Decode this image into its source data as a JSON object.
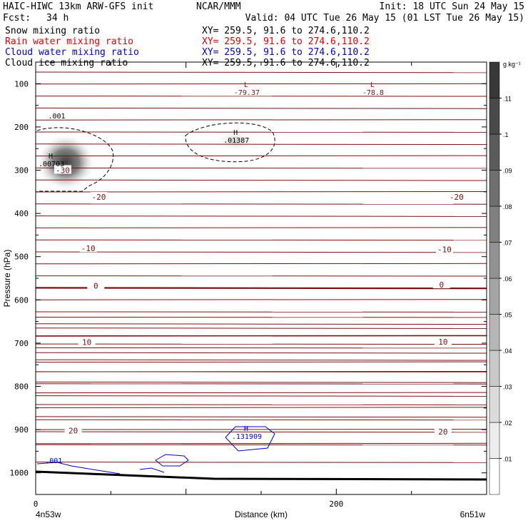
{
  "header": {
    "left_line1": "HAIC-HIWC 13km ARW-GFS init",
    "center_line1": "NCAR/MMM",
    "right_line1": "Init: 18 UTC Sun 24 May 15",
    "left_line2_label": "Fcst:",
    "left_line2_value": "34 h",
    "right_line2": "Valid: 04 UTC Tue 26 May 15 (01 LST Tue 26 May 15)"
  },
  "fields": [
    {
      "name": "Snow mixing ratio",
      "xy": "XY= 259.5, 91.6 to 274.6,110.2",
      "color": "#000000"
    },
    {
      "name": "Rain water mixing ratio",
      "xy": "XY= 259.5, 91.6 to 274.6,110.2",
      "color": "#e00000"
    },
    {
      "name": "Cloud water mixing ratio",
      "xy": "XY= 259.5, 91.6 to 274.6,110.2",
      "color": "#0000d0"
    },
    {
      "name": "Cloud ice mixing ratio",
      "xy": "XY= 259.5, 91.6 to 274.6,110.2",
      "color": "#000000"
    }
  ],
  "chart_data": {
    "type": "contour",
    "xlabel": "Distance (km)",
    "ylabel": "Pressure (hPa)",
    "xlim": [
      0,
      300
    ],
    "x_ticks": [
      0,
      200
    ],
    "ylim_hpa": [
      50,
      1050
    ],
    "y_ticks": [
      100,
      200,
      300,
      400,
      500,
      600,
      700,
      800,
      900,
      1000
    ],
    "x_endpoints": {
      "left": "4n53w",
      "right": "6n51w"
    },
    "colorbar": {
      "unit": "g kg⁻¹",
      "ticks": [
        ".01",
        ".02",
        ".03",
        ".04",
        ".05",
        ".06",
        ".07",
        ".08",
        ".09",
        ".1",
        ".11"
      ],
      "tick_values": [
        0.01,
        0.02,
        0.03,
        0.04,
        0.05,
        0.06,
        0.07,
        0.08,
        0.09,
        0.1,
        0.11
      ]
    },
    "temperature_contour_color": "#7a1010",
    "temperature_labels": [
      {
        "text": "-30",
        "x": 18,
        "p": 300
      },
      {
        "text": "-20",
        "x": 42,
        "p": 362
      },
      {
        "text": "-20",
        "x": 280,
        "p": 362
      },
      {
        "text": "-10",
        "x": 35,
        "p": 481
      },
      {
        "text": "-10",
        "x": 272,
        "p": 483
      },
      {
        "text": "0",
        "x": 40,
        "p": 567
      },
      {
        "text": "0",
        "x": 270,
        "p": 565
      },
      {
        "text": "10",
        "x": 34,
        "p": 698
      },
      {
        "text": "10",
        "x": 271,
        "p": 697
      },
      {
        "text": "20",
        "x": 25,
        "p": 902
      },
      {
        "text": "20",
        "x": 271,
        "p": 905
      }
    ],
    "extrema": [
      {
        "kind": "L",
        "value": "-79.37",
        "x": 140,
        "p": 108,
        "color": "#7a1010"
      },
      {
        "kind": "L",
        "value": "-78.8",
        "x": 224,
        "p": 108,
        "color": "#7a1010"
      },
      {
        "kind": "H",
        "value": ".00703",
        "x": 10,
        "p": 273,
        "color": "#000000"
      },
      {
        "kind": "H",
        "value": ".01387",
        "x": 133,
        "p": 218,
        "color": "#000000"
      },
      {
        "kind": "H",
        "value": ".131909",
        "x": 140,
        "p": 903,
        "color": "#0000d0"
      }
    ],
    "contour_labels": [
      {
        "text": ".001",
        "x": 14,
        "p": 180,
        "color": "#000000"
      },
      {
        "text": ".001",
        "x": 12,
        "p": 977,
        "color": "#0000d0"
      }
    ],
    "snow_maxima": [
      {
        "x": 20,
        "p": 282,
        "peak": 0.11
      },
      {
        "x": 133,
        "p": 232,
        "peak": 0.025
      }
    ]
  }
}
